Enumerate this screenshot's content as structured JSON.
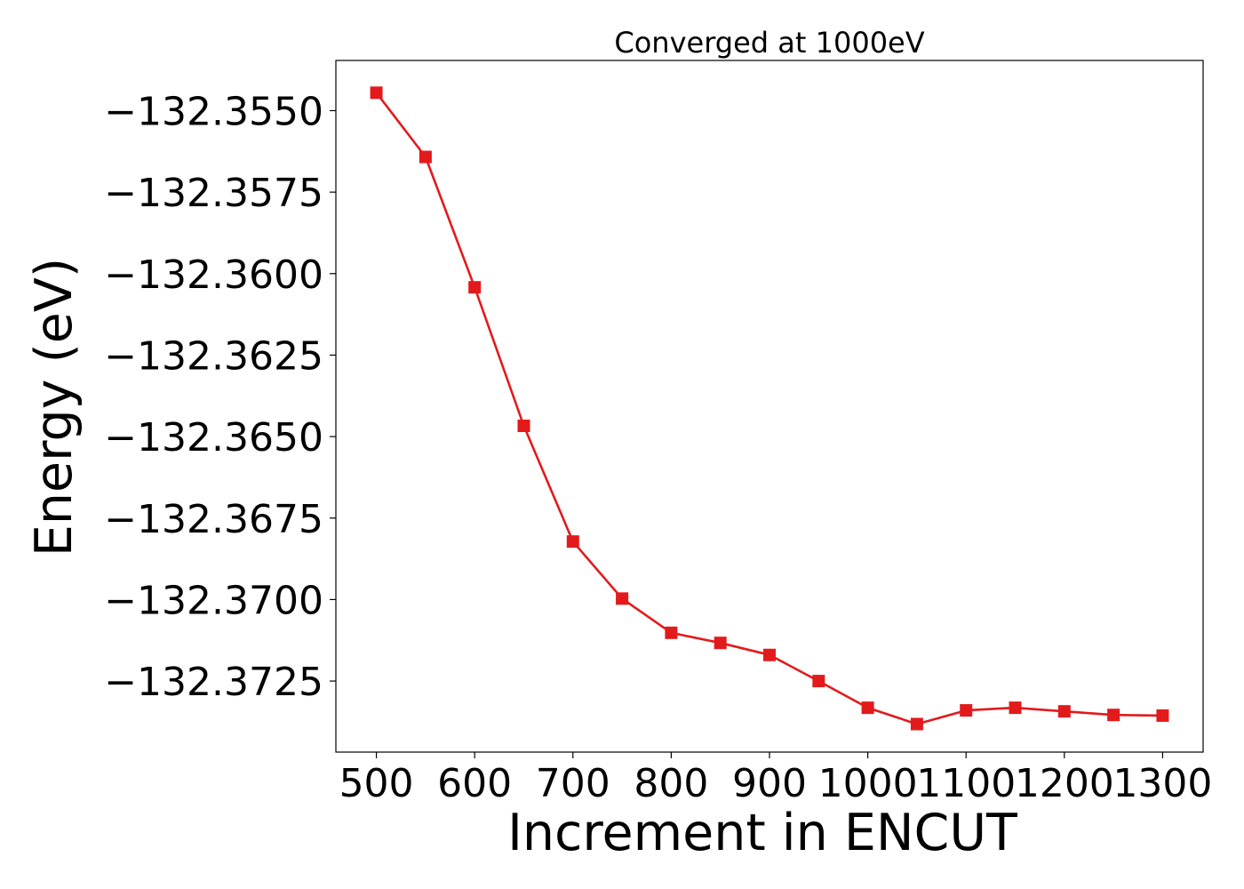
{
  "chart_data": {
    "type": "line",
    "title": "Converged at 1000eV",
    "xlabel": "Increment in ENCUT",
    "ylabel": "Energy (eV)",
    "x": [
      500,
      550,
      600,
      650,
      700,
      750,
      800,
      850,
      900,
      950,
      1000,
      1050,
      1100,
      1150,
      1200,
      1250,
      1300
    ],
    "series": [
      {
        "name": "",
        "values": [
          -132.35445,
          -132.35642,
          -132.36042,
          -132.36467,
          -132.36822,
          -132.36997,
          -132.37102,
          -132.37133,
          -132.3717,
          -132.3725,
          -132.37332,
          -132.37382,
          -132.3734,
          -132.37332,
          -132.37343,
          -132.37354,
          -132.37356
        ],
        "color": "#e31a1c",
        "marker": "square"
      }
    ],
    "xticks": [
      500,
      600,
      700,
      800,
      900,
      1000,
      1100,
      1200,
      1300
    ],
    "xtick_labels": [
      "500",
      "600",
      "700",
      "800",
      "900",
      "1000",
      "1100",
      "1200",
      "1300"
    ],
    "yticks": [
      -132.355,
      -132.3575,
      -132.36,
      -132.3625,
      -132.365,
      -132.3675,
      -132.37,
      -132.3725
    ],
    "ytick_labels": [
      "−132.3550",
      "−132.3575",
      "−132.3600",
      "−132.3625",
      "−132.3650",
      "−132.3675",
      "−132.3700",
      "−132.3725"
    ],
    "xlim": [
      458.8,
      1341.2
    ],
    "ylim": [
      -132.37468,
      -132.35346
    ],
    "grid": false,
    "legend": "none"
  }
}
